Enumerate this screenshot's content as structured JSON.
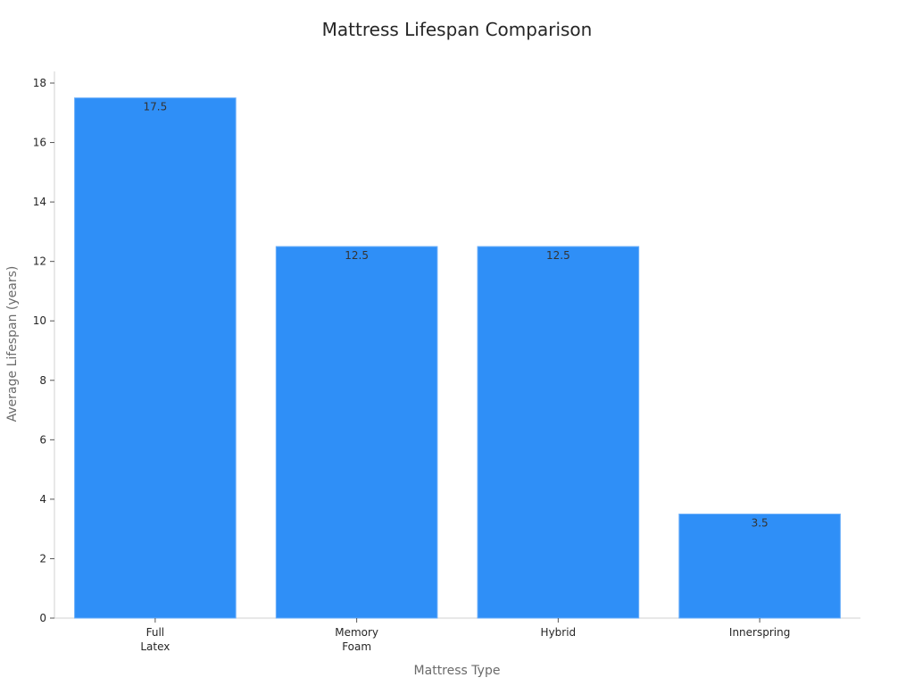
{
  "chart_data": {
    "type": "bar",
    "title": "Mattress Lifespan Comparison",
    "xlabel": "Mattress Type",
    "ylabel": "Average Lifespan (years)",
    "categories": [
      [
        "Full",
        "Latex"
      ],
      [
        "Memory",
        "Foam"
      ],
      [
        "Hybrid"
      ],
      [
        "Innerspring"
      ]
    ],
    "values": [
      17.5,
      12.5,
      12.5,
      3.5
    ],
    "data_labels": [
      "17.5",
      "12.5",
      "12.5",
      "3.5"
    ],
    "ylim": [
      0,
      18
    ],
    "yticks": [
      0,
      2,
      4,
      6,
      8,
      10,
      12,
      14,
      16,
      18
    ],
    "bar_color": "#2f8ff7",
    "grid": false,
    "legend": "none"
  }
}
